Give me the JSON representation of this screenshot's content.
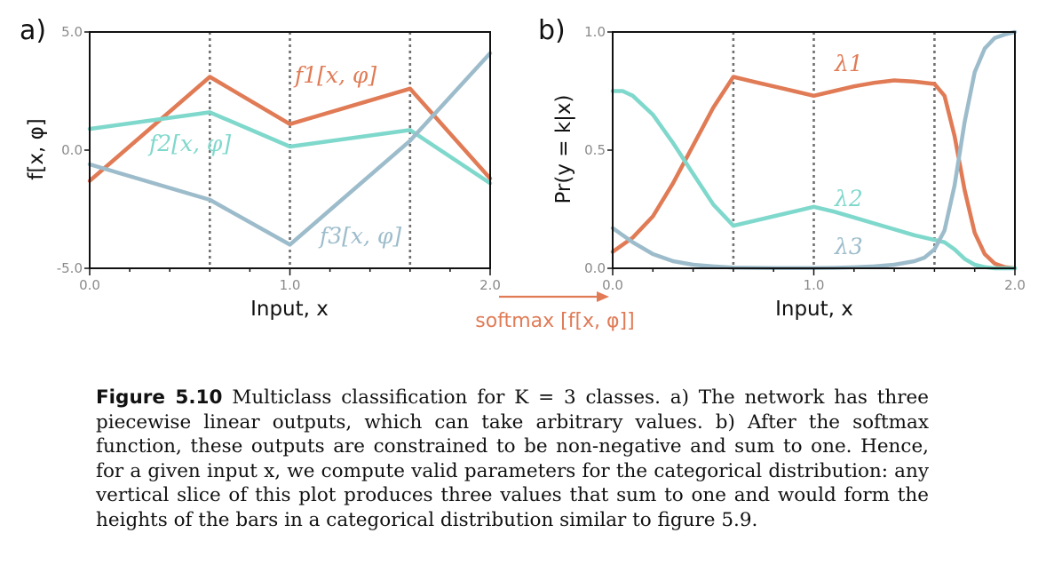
{
  "colors": {
    "f1": "#e07b56",
    "f2": "#7fd8cc",
    "f3": "#9dbccb",
    "axis": "#111111",
    "tick": "#8a8a8a",
    "vline": "#707070"
  },
  "chart_data": [
    {
      "panel": "a)",
      "type": "line",
      "xlabel": "Input, x",
      "ylabel": "f[x, φ]",
      "xlim": [
        0.0,
        2.0
      ],
      "ylim": [
        -5.0,
        5.0
      ],
      "xticks": [
        "0.0",
        "1.0",
        "2.0"
      ],
      "yticks": [
        "-5.0",
        "0.0",
        "5.0"
      ],
      "vlines": [
        0.6,
        1.0,
        1.6
      ],
      "series": [
        {
          "name": "f1[x, φ]",
          "color_key": "f1",
          "x": [
            0.0,
            0.6,
            1.0,
            1.6,
            2.0
          ],
          "y": [
            -1.3,
            3.1,
            1.1,
            2.6,
            -1.2
          ]
        },
        {
          "name": "f2[x, φ]",
          "color_key": "f2",
          "x": [
            0.0,
            0.6,
            1.0,
            1.6,
            2.0
          ],
          "y": [
            0.9,
            1.6,
            0.15,
            0.85,
            -1.4
          ]
        },
        {
          "name": "f3[x, φ]",
          "color_key": "f3",
          "x": [
            0.0,
            0.6,
            1.0,
            1.6,
            2.0
          ],
          "y": [
            -0.6,
            -2.1,
            -4.0,
            0.4,
            4.1
          ]
        }
      ]
    },
    {
      "panel": "b)",
      "type": "line",
      "xlabel": "Input, x",
      "ylabel": "Pr(y = k|x)",
      "xlim": [
        0.0,
        2.0
      ],
      "ylim": [
        0.0,
        1.0
      ],
      "xticks": [
        "0.0",
        "1.0",
        "2.0"
      ],
      "yticks": [
        "0.0",
        "0.5",
        "1.0"
      ],
      "vlines": [
        0.6,
        1.0,
        1.6
      ],
      "series": [
        {
          "name": "λ1",
          "color_key": "f1",
          "x": [
            0.0,
            0.1,
            0.2,
            0.3,
            0.4,
            0.5,
            0.6,
            0.7,
            0.8,
            0.9,
            1.0,
            1.1,
            1.2,
            1.3,
            1.4,
            1.5,
            1.6,
            1.65,
            1.7,
            1.75,
            1.8,
            1.85,
            1.9,
            1.95,
            2.0
          ],
          "y": [
            0.07,
            0.13,
            0.22,
            0.36,
            0.52,
            0.68,
            0.81,
            0.79,
            0.77,
            0.75,
            0.73,
            0.75,
            0.77,
            0.785,
            0.795,
            0.79,
            0.78,
            0.73,
            0.56,
            0.33,
            0.15,
            0.06,
            0.02,
            0.005,
            0.0
          ]
        },
        {
          "name": "λ2",
          "color_key": "f2",
          "x": [
            0.0,
            0.05,
            0.1,
            0.2,
            0.3,
            0.4,
            0.5,
            0.6,
            0.7,
            0.8,
            0.9,
            1.0,
            1.1,
            1.2,
            1.3,
            1.4,
            1.5,
            1.6,
            1.65,
            1.7,
            1.75,
            1.8,
            1.85,
            1.9,
            1.95,
            2.0
          ],
          "y": [
            0.75,
            0.75,
            0.73,
            0.65,
            0.53,
            0.4,
            0.27,
            0.18,
            0.2,
            0.22,
            0.24,
            0.26,
            0.24,
            0.215,
            0.19,
            0.165,
            0.14,
            0.12,
            0.11,
            0.08,
            0.04,
            0.015,
            0.005,
            0.0,
            0.0,
            0.0
          ]
        },
        {
          "name": "λ3",
          "color_key": "f3",
          "x": [
            0.0,
            0.1,
            0.2,
            0.3,
            0.4,
            0.5,
            0.6,
            0.7,
            0.8,
            0.9,
            1.0,
            1.1,
            1.2,
            1.3,
            1.4,
            1.5,
            1.55,
            1.6,
            1.65,
            1.7,
            1.75,
            1.8,
            1.85,
            1.9,
            1.95,
            2.0
          ],
          "y": [
            0.17,
            0.11,
            0.06,
            0.03,
            0.015,
            0.008,
            0.003,
            0.002,
            0.001,
            0.001,
            0.001,
            0.002,
            0.004,
            0.008,
            0.015,
            0.03,
            0.045,
            0.08,
            0.16,
            0.35,
            0.62,
            0.83,
            0.93,
            0.975,
            0.99,
            1.0
          ]
        }
      ]
    }
  ],
  "arrow_label": "softmax [f[x, φ]]",
  "caption": {
    "label": "Figure 5.10",
    "text": " Multiclass classification for K = 3 classes. a) The network has three piecewise linear outputs, which can take arbitrary values. b) After the softmax function, these outputs are constrained to be non-negative and sum to one. Hence, for a given input x, we compute valid parameters for the categorical distribution: any vertical slice of this plot produces three values that sum to one and would form the heights of the bars in a categorical distribution similar to figure 5.9."
  }
}
